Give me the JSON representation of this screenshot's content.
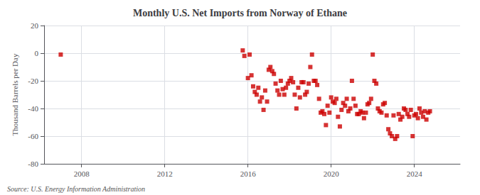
{
  "chart_data": {
    "type": "scatter",
    "title": "Monthly U.S. Net Imports from Norway of Ethane",
    "ylabel": "Thousand Barrels per Day",
    "annotations": [
      "Source: U.S. Energy Information Administration"
    ],
    "color": "#cc0000",
    "marker": "square",
    "grid": true,
    "xlim": [
      2006.2,
      2026.2
    ],
    "xticks": [
      2008,
      2012,
      2016,
      2020,
      2024
    ],
    "ylim": [
      -80,
      20
    ],
    "yticks": [
      -80,
      -60,
      -40,
      -20,
      0,
      20
    ],
    "x": [
      2007.0,
      2015.75,
      2015.83,
      2016.0,
      2016.08,
      2016.17,
      2016.25,
      2016.33,
      2016.42,
      2016.5,
      2016.58,
      2016.67,
      2016.75,
      2016.83,
      2016.92,
      2017.0,
      2017.08,
      2017.17,
      2017.25,
      2017.33,
      2017.42,
      2017.5,
      2017.58,
      2017.67,
      2017.75,
      2017.83,
      2017.92,
      2018.0,
      2018.08,
      2018.17,
      2018.25,
      2018.33,
      2018.42,
      2018.5,
      2018.58,
      2018.67,
      2018.75,
      2018.83,
      2018.92,
      2019.0,
      2019.08,
      2019.17,
      2019.25,
      2019.33,
      2019.42,
      2019.5,
      2019.58,
      2019.67,
      2019.75,
      2019.83,
      2019.92,
      2020.0,
      2020.08,
      2020.17,
      2020.25,
      2020.33,
      2020.42,
      2020.5,
      2020.58,
      2020.67,
      2020.75,
      2020.83,
      2020.92,
      2021.0,
      2021.08,
      2021.17,
      2021.25,
      2021.33,
      2021.42,
      2021.5,
      2021.58,
      2021.67,
      2021.75,
      2021.83,
      2021.92,
      2022.0,
      2022.08,
      2022.17,
      2022.25,
      2022.33,
      2022.42,
      2022.5,
      2022.58,
      2022.67,
      2022.75,
      2022.83,
      2022.92,
      2023.0,
      2023.08,
      2023.17,
      2023.25,
      2023.33,
      2023.42,
      2023.5,
      2023.58,
      2023.67,
      2023.75,
      2023.83,
      2023.92,
      2024.0,
      2024.08,
      2024.17,
      2024.25,
      2024.33,
      2024.42,
      2024.5,
      2024.58,
      2024.67,
      2024.75
    ],
    "values": [
      -1,
      2,
      -2,
      -18,
      -1,
      -16,
      -24,
      -28,
      -30,
      -25,
      -35,
      -32,
      -41,
      -27,
      -35,
      -12,
      -10,
      -13,
      -15,
      -22,
      -27,
      -30,
      -20,
      -26,
      -30,
      -25,
      -22,
      -20,
      -18,
      -21,
      -30,
      -40,
      -25,
      -32,
      -21,
      -21,
      -30,
      -28,
      -22,
      -10,
      -1,
      -20,
      -20,
      -23,
      -33,
      -43,
      -42,
      -44,
      -52,
      -38,
      -43,
      -32,
      -35,
      -36,
      -33,
      -46,
      -53,
      -41,
      -36,
      -38,
      -33,
      -42,
      -40,
      -20,
      -33,
      -38,
      -44,
      -44,
      -42,
      -43,
      -47,
      -43,
      -37,
      -36,
      -33,
      -1,
      -20,
      -22,
      -40,
      -42,
      -43,
      -37,
      -36,
      -45,
      -55,
      -58,
      -60,
      -45,
      -62,
      -60,
      -44,
      -48,
      -46,
      -40,
      -41,
      -44,
      -46,
      -41,
      -60,
      -45,
      -44,
      -47,
      -40,
      -43,
      -46,
      -42,
      -48,
      -43,
      -42
    ]
  }
}
